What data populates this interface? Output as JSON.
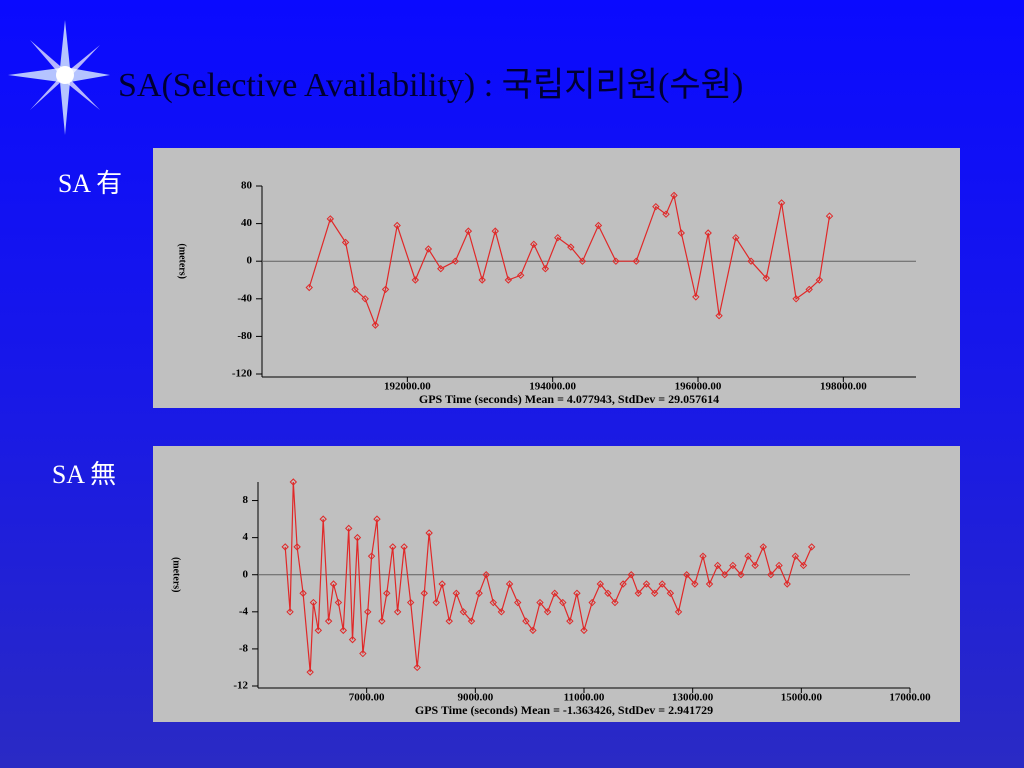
{
  "title": "SA(Selective Availability) : 국립지리원(수원)",
  "chart_data": [
    {
      "type": "line",
      "title": "SA 有",
      "xlabel": "GPS Time (seconds)  Mean = 4.077943, StdDev = 29.057614",
      "ylabel": "(meters)",
      "xlim": [
        190000,
        199000
      ],
      "xticks": [
        {
          "value": 192000,
          "label": "192000.00"
        },
        {
          "value": 194000,
          "label": "194000.00"
        },
        {
          "value": 196000,
          "label": "196000.00"
        },
        {
          "value": 198000,
          "label": "198000.00"
        }
      ],
      "ylim": [
        -120,
        80
      ],
      "yticks": [
        80,
        40,
        0,
        -40,
        -80,
        -120
      ],
      "x": [
        190650,
        190940,
        191150,
        191280,
        191420,
        191560,
        191700,
        191860,
        192110,
        192290,
        192460,
        192660,
        192840,
        193030,
        193210,
        193390,
        193560,
        193740,
        193900,
        194070,
        194250,
        194410,
        194630,
        194870,
        195150,
        195420,
        195560,
        195670,
        195770,
        195970,
        196140,
        196290,
        196520,
        196730,
        196940,
        197150,
        197350,
        197530,
        197670,
        197810
      ],
      "series": [
        {
          "name": null,
          "color": "#e02828",
          "values": [
            -28,
            45,
            20,
            -30,
            -40,
            -68,
            -30,
            38,
            -20,
            13,
            -8,
            0,
            32,
            -20,
            32,
            -20,
            -15,
            18,
            -8,
            25,
            15,
            0,
            38,
            0,
            0,
            58,
            50,
            70,
            30,
            -38,
            30,
            -58,
            25,
            0,
            -18,
            62,
            -40,
            -30,
            -20,
            48
          ]
        }
      ]
    },
    {
      "type": "line",
      "title": "SA 無",
      "xlabel": "GPS Time (seconds)  Mean = -1.363426, StdDev = 2.941729",
      "ylabel": "(meters)",
      "xlim": [
        5000,
        17000
      ],
      "xticks": [
        {
          "value": 7000,
          "label": "7000.00"
        },
        {
          "value": 9000,
          "label": "9000.00"
        },
        {
          "value": 11000,
          "label": "11000.00"
        },
        {
          "value": 13000,
          "label": "13000.00"
        },
        {
          "value": 15000,
          "label": "15000.00"
        },
        {
          "value": 17000,
          "label": "17000.00"
        }
      ],
      "ylim": [
        -12,
        10
      ],
      "yticks": [
        8,
        4,
        0,
        -4,
        -8,
        -12
      ],
      "x": [
        5500,
        5590,
        5650,
        5720,
        5830,
        5960,
        6020,
        6110,
        6200,
        6300,
        6390,
        6480,
        6570,
        6670,
        6740,
        6830,
        6930,
        7020,
        7090,
        7190,
        7280,
        7370,
        7480,
        7570,
        7690,
        7810,
        7930,
        8060,
        8150,
        8280,
        8390,
        8520,
        8650,
        8780,
        8930,
        9070,
        9200,
        9330,
        9480,
        9630,
        9780,
        9930,
        10060,
        10190,
        10330,
        10460,
        10610,
        10740,
        10870,
        11000,
        11150,
        11300,
        11440,
        11570,
        11720,
        11870,
        12000,
        12150,
        12300,
        12440,
        12590,
        12740,
        12890,
        13040,
        13190,
        13310,
        13460,
        13590,
        13740,
        13890,
        14020,
        14150,
        14300,
        14440,
        14590,
        14740,
        14890,
        15040,
        15190
      ],
      "series": [
        {
          "name": null,
          "color": "#e02828",
          "values": [
            3,
            -4,
            10,
            3,
            -2,
            -10.5,
            -3,
            -6,
            6,
            -5,
            -1,
            -3,
            -6,
            5,
            -7,
            4,
            -8.5,
            -4,
            2,
            6,
            -5,
            -2,
            3,
            -4,
            3,
            -3,
            -10,
            -2,
            4.5,
            -3,
            -1,
            -5,
            -2,
            -4,
            -5,
            -2,
            0,
            -3,
            -4,
            -1,
            -3,
            -5,
            -6,
            -3,
            -4,
            -2,
            -3,
            -5,
            -2,
            -6,
            -3,
            -1,
            -2,
            -3,
            -1,
            0,
            -2,
            -1,
            -2,
            -1,
            -2,
            -4,
            0,
            -1,
            2,
            -1,
            1,
            0,
            1,
            0,
            2,
            1,
            3,
            0,
            1,
            -1,
            2,
            1,
            3
          ]
        }
      ]
    }
  ]
}
